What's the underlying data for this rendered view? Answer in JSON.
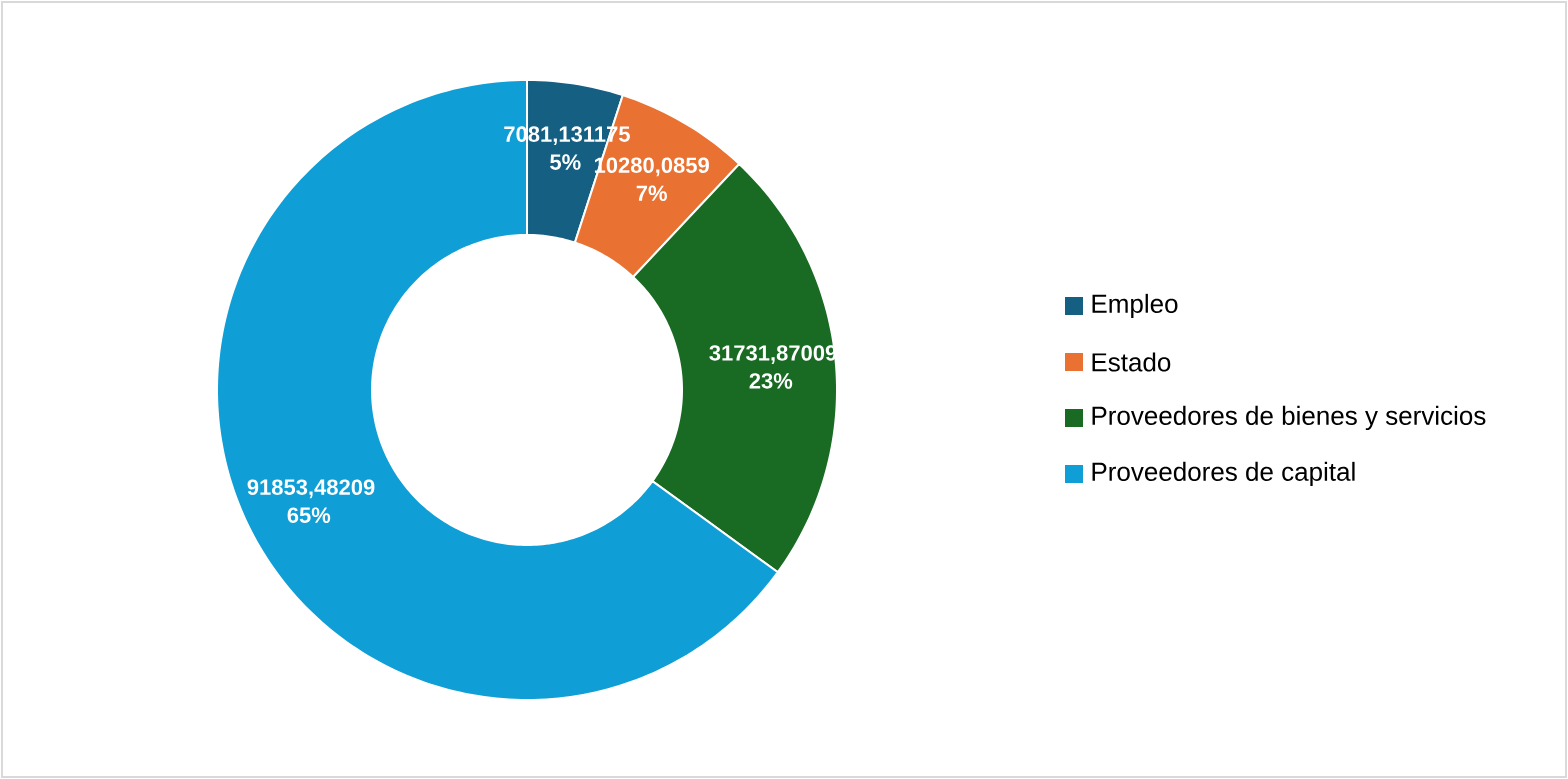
{
  "chart_data": {
    "type": "donut",
    "categories": [
      "Empleo",
      "Estado",
      "Proveedores de bienes y servicios",
      "Proveedores de capital"
    ],
    "values": [
      5,
      7,
      23,
      65
    ],
    "colors": [
      "#156082",
      "#e97132",
      "#196b24",
      "#0f9ed5"
    ],
    "value_labels": [
      "7081,131175 5%",
      "10280,0859 7%",
      "31731,87009 23%",
      "91853,48209 65%"
    ],
    "legend": "right"
  }
}
